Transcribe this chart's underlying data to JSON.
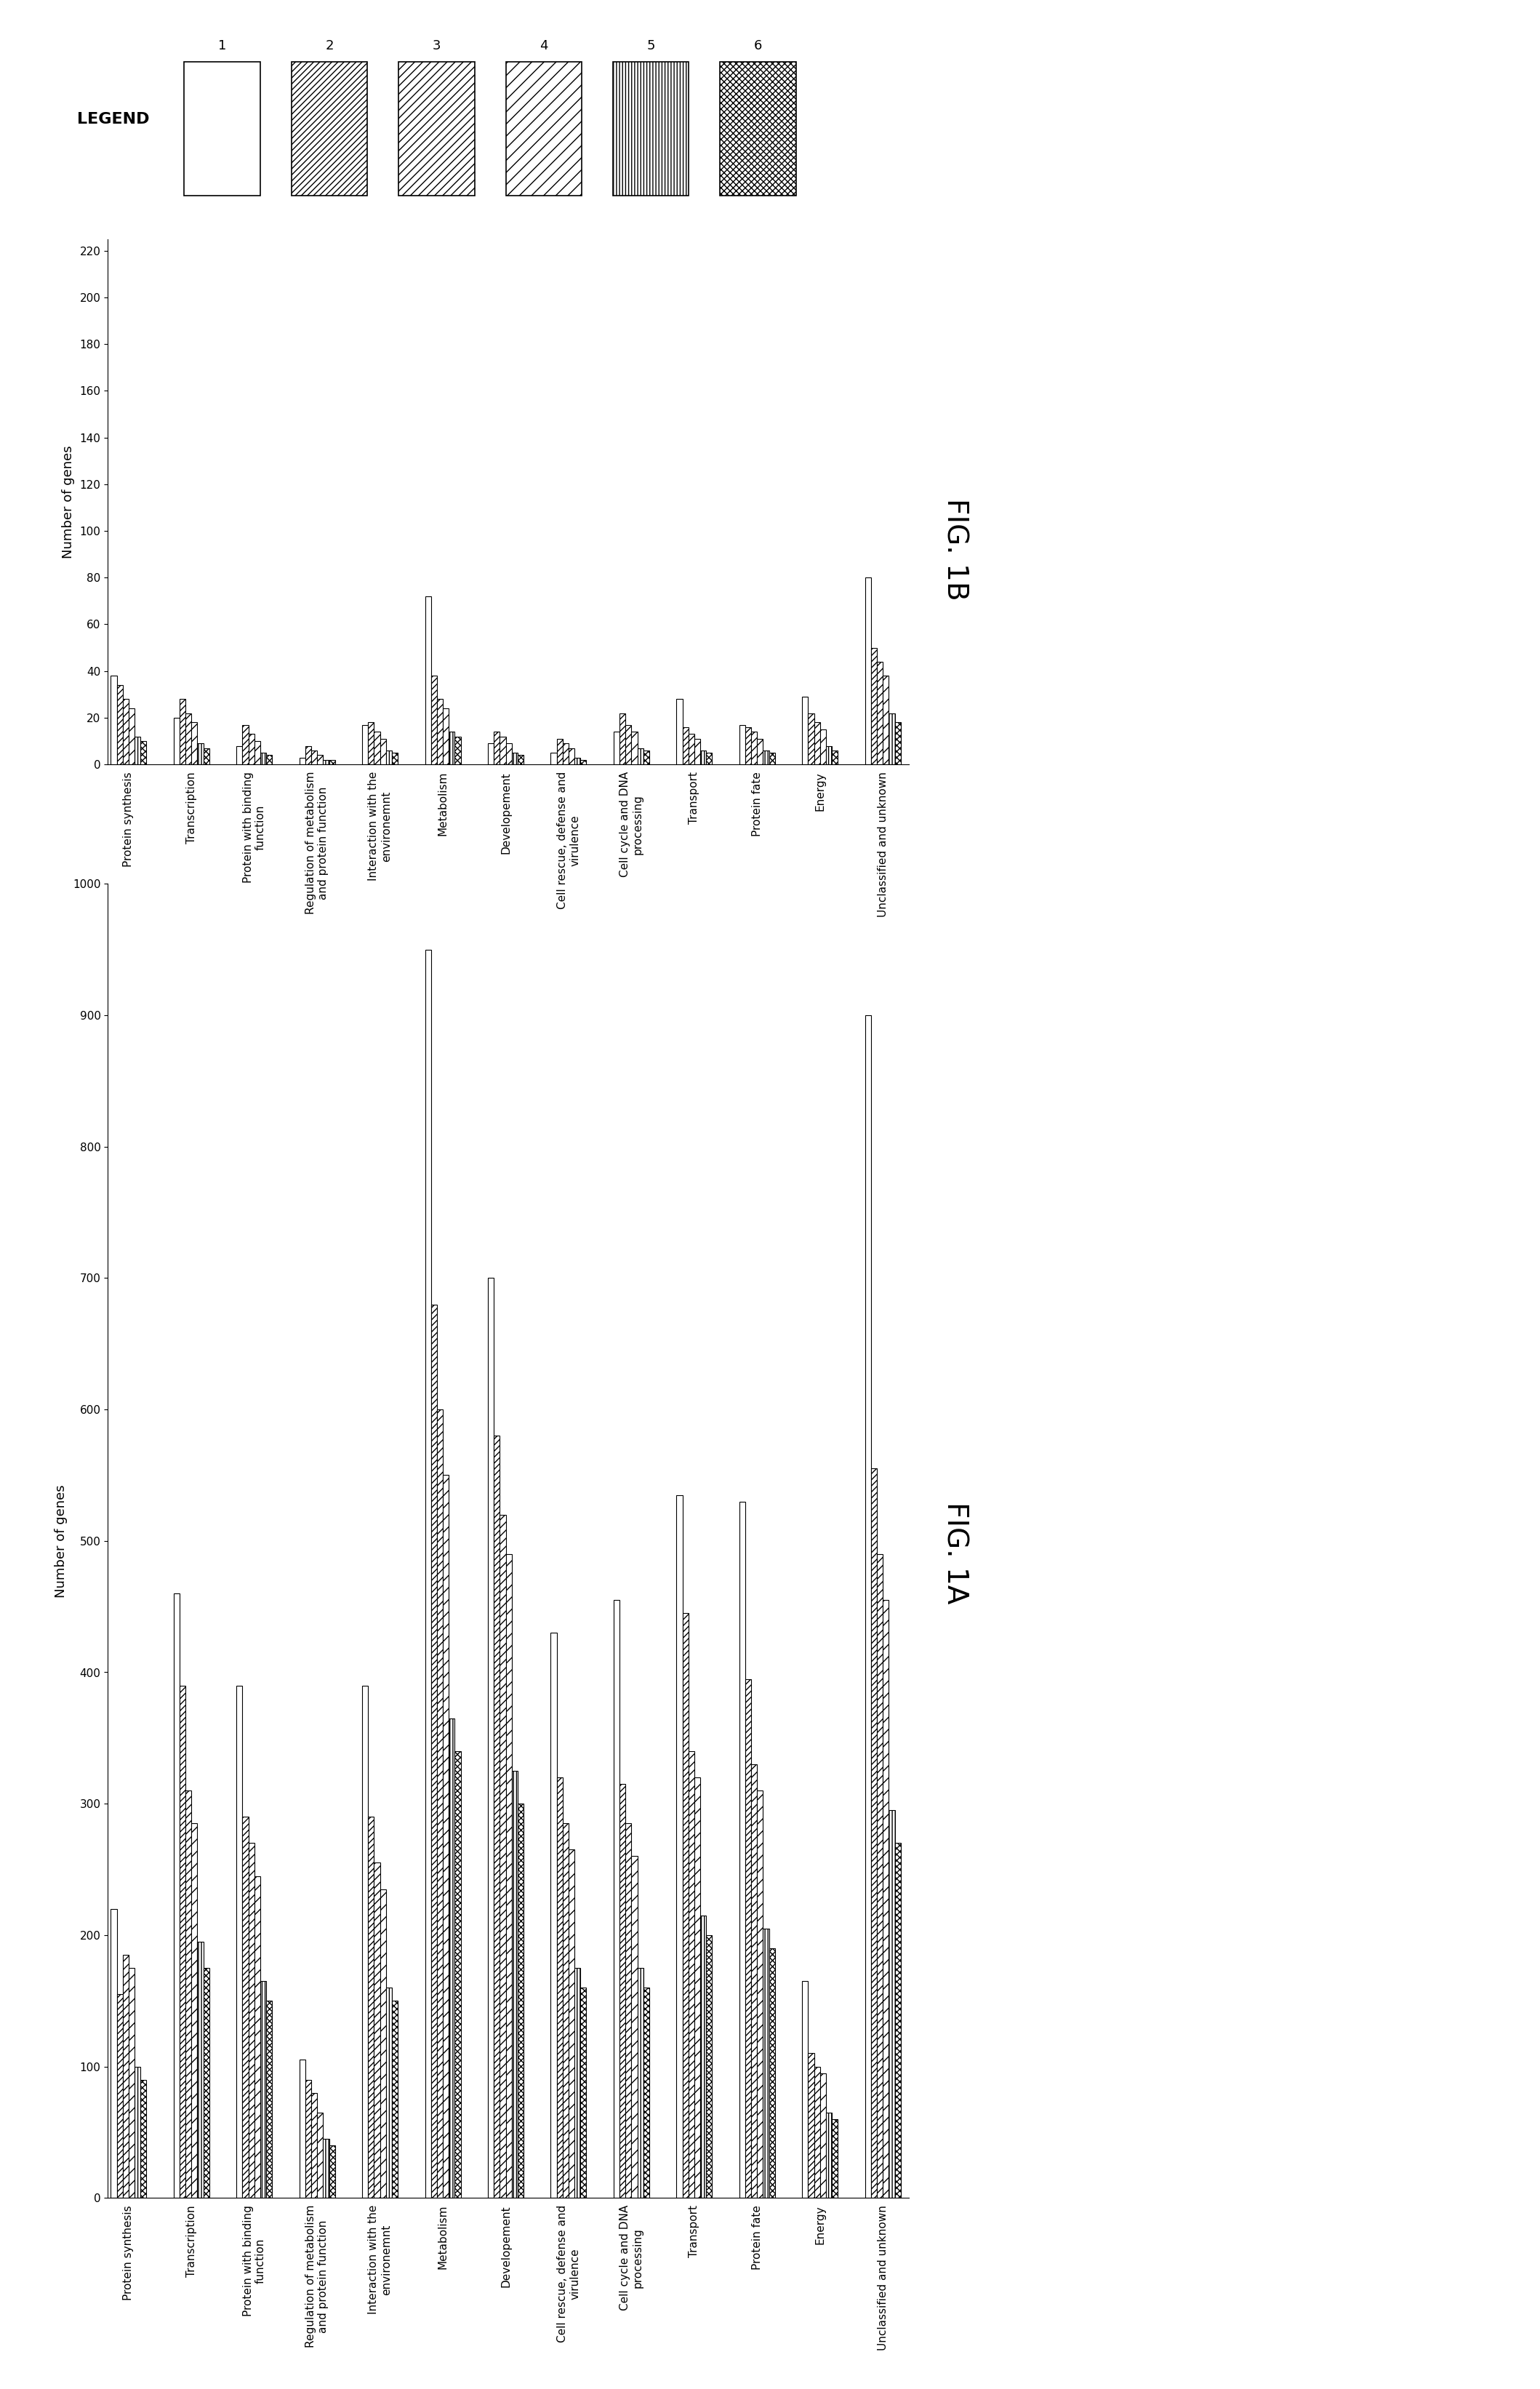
{
  "categories": [
    "Protein synthesis",
    "Transcription",
    "Protein with binding\nfunction",
    "Regulation of metabolism\nand protein function",
    "Interaction with the\nenvironemnt",
    "Metabolism",
    "Developement",
    "Cell rescue, defense and\nvirulence",
    "Cell cycle and DNA\nprocessing",
    "Transport",
    "Protein fate",
    "Energy",
    "Unclassified and unknown"
  ],
  "fig1A_data": [
    [
      220,
      460,
      390,
      105,
      390,
      950,
      700,
      430,
      455,
      535,
      530,
      165,
      900
    ],
    [
      155,
      390,
      290,
      90,
      290,
      680,
      580,
      320,
      315,
      445,
      395,
      110,
      555
    ],
    [
      185,
      310,
      270,
      80,
      255,
      600,
      520,
      285,
      285,
      340,
      330,
      100,
      490
    ],
    [
      175,
      285,
      245,
      65,
      235,
      550,
      490,
      265,
      260,
      320,
      310,
      95,
      455
    ],
    [
      100,
      195,
      165,
      45,
      160,
      365,
      325,
      175,
      175,
      215,
      205,
      65,
      295
    ],
    [
      90,
      175,
      150,
      40,
      150,
      340,
      300,
      160,
      160,
      200,
      190,
      60,
      270
    ]
  ],
  "fig1B_data": [
    [
      38,
      20,
      8,
      3,
      17,
      72,
      9,
      5,
      14,
      28,
      17,
      29,
      80
    ],
    [
      34,
      28,
      17,
      8,
      18,
      38,
      14,
      11,
      22,
      16,
      16,
      22,
      50
    ],
    [
      28,
      22,
      13,
      6,
      14,
      28,
      12,
      9,
      17,
      13,
      14,
      18,
      44
    ],
    [
      24,
      18,
      10,
      4,
      11,
      24,
      9,
      7,
      14,
      11,
      11,
      15,
      38
    ],
    [
      12,
      9,
      5,
      2,
      6,
      14,
      5,
      3,
      7,
      6,
      6,
      8,
      22
    ],
    [
      10,
      7,
      4,
      2,
      5,
      12,
      4,
      2,
      6,
      5,
      5,
      6,
      18
    ]
  ],
  "hatch_patterns": [
    "",
    "////",
    "////",
    "////",
    "||||",
    "xxxx"
  ],
  "face_colors": [
    "white",
    "white",
    "white",
    "white",
    "white",
    "white"
  ],
  "legend_labels": [
    "1",
    "2",
    "3",
    "4",
    "5",
    "6"
  ],
  "fig1A_ylabel": "Number of genes",
  "fig1B_ylabel": "Number of genes",
  "fig1A_ylim": [
    0,
    1000
  ],
  "fig1B_ylim": [
    0,
    225
  ],
  "fig1A_yticks": [
    0,
    100,
    200,
    300,
    400,
    500,
    600,
    700,
    800,
    900,
    1000
  ],
  "fig1B_yticks": [
    0,
    20,
    40,
    60,
    80,
    100,
    120,
    140,
    160,
    180,
    200,
    220
  ],
  "title_A": "FIG. 1A",
  "title_B": "FIG. 1B"
}
